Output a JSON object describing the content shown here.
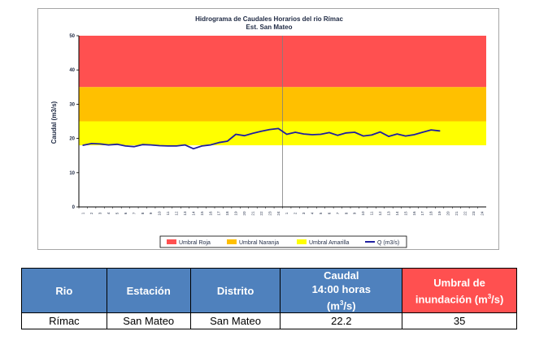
{
  "chart_data": {
    "type": "line",
    "title": "Hidrograma de Caudales Horarios del rio Rímac",
    "subtitle": "Est. San Mateo",
    "ylabel": "Caudal  (m3/s)",
    "ylim": [
      0,
      50
    ],
    "yticks": [
      "0",
      "10",
      "20",
      "30",
      "40",
      "50"
    ],
    "xticks": [
      "1",
      "2",
      "3",
      "4",
      "5",
      "6",
      "7",
      "8",
      "9",
      "10",
      "11",
      "12",
      "13",
      "14",
      "15",
      "16",
      "17",
      "18",
      "19",
      "20",
      "21",
      "22",
      "23",
      "24",
      "1",
      "2",
      "3",
      "4",
      "5",
      "6",
      "7",
      "8",
      "9",
      "10",
      "11",
      "12",
      "13",
      "14",
      "15",
      "16",
      "17",
      "18",
      "19",
      "20",
      "21",
      "22",
      "23",
      "24"
    ],
    "bands": [
      {
        "name": "Umbral Roja",
        "from": 35,
        "to": 50,
        "color": "#ff5050"
      },
      {
        "name": "Umbral Naranja",
        "from": 25,
        "to": 35,
        "color": "#ffc000"
      },
      {
        "name": "Umbral Amarilla",
        "from": 18,
        "to": 25,
        "color": "#ffff00"
      }
    ],
    "series": [
      {
        "name": "Q (m3/s)",
        "color": "#1f1fa0",
        "values": [
          18.0,
          18.5,
          18.4,
          18.1,
          18.3,
          17.8,
          17.6,
          18.2,
          18.1,
          17.9,
          17.8,
          17.8,
          18.1,
          17.0,
          17.8,
          18.1,
          18.8,
          19.2,
          21.2,
          20.8,
          21.5,
          22.1,
          22.6,
          22.9,
          21.2,
          21.8,
          21.3,
          21.1,
          21.2,
          21.7,
          20.9,
          21.6,
          21.8,
          20.7,
          21.0,
          21.9,
          20.6,
          21.3,
          20.7,
          21.1,
          21.8,
          22.5,
          22.2
        ]
      }
    ],
    "legend_position": "bottom",
    "grid": false
  },
  "legend": [
    {
      "label": "Umbral Roja",
      "color": "#ff5050",
      "kind": "patch"
    },
    {
      "label": "Umbral Naranja",
      "color": "#ffc000",
      "kind": "patch"
    },
    {
      "label": "Umbral Amarilla",
      "color": "#ffff00",
      "kind": "patch"
    },
    {
      "label": "Q (m3/s)",
      "color": "#1f1fa0",
      "kind": "line"
    }
  ],
  "table": {
    "headers": {
      "rio": "Rio",
      "estacion": "Estación",
      "distrito": "Distrito",
      "caudal_line1": "Caudal",
      "caudal_line2": "14:00  horas",
      "caudal_line3": "(m",
      "caudal_line3_sup": "3",
      "caudal_line3_end": "/s)",
      "umbral_line1": "Umbral de",
      "umbral_line2": "inundación (m",
      "umbral_line2_sup": "3",
      "umbral_line2_end": "/s)"
    },
    "row": {
      "rio": "Rímac",
      "estacion": "San Mateo",
      "distrito": "San Mateo",
      "caudal": "22.2",
      "umbral": "35"
    }
  }
}
